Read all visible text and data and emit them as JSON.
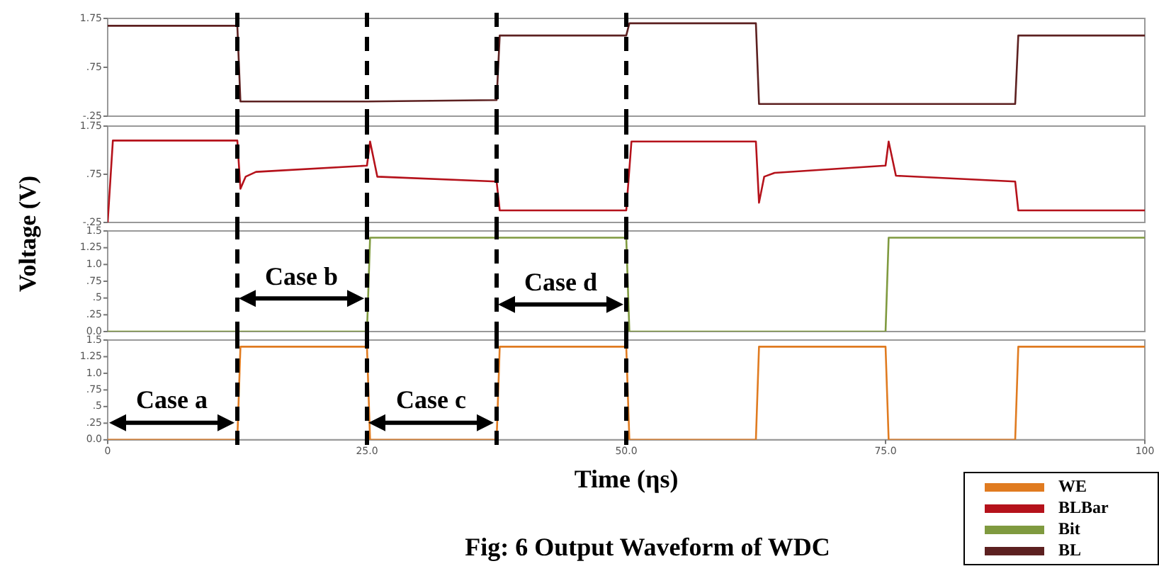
{
  "chart_data": [
    {
      "type": "line",
      "ylabel": "Voltage (V)",
      "xlim": [
        0,
        100
      ],
      "ylim": [
        -0.25,
        1.75
      ],
      "yticks": [
        {
          "value": 1.75,
          "label": "1.75"
        },
        {
          "value": 0.75,
          "label": ".75"
        },
        {
          "value": -0.25,
          "label": "-.25"
        }
      ],
      "tick_labels": "y",
      "grid": false,
      "legend": "bottom right",
      "marker": "none",
      "series": [
        {
          "name": "BL",
          "color": "#5c2020",
          "x": [
            0,
            12.5,
            12.8,
            25,
            37.5,
            37.8,
            50,
            50.3,
            62.5,
            62.8,
            87.5,
            87.8,
            100
          ],
          "values": [
            1.6,
            1.6,
            0.05,
            0.05,
            0.08,
            1.4,
            1.4,
            1.65,
            1.65,
            0.0,
            0.0,
            1.4,
            1.4
          ]
        }
      ],
      "ref_lines": [
        {
          "axis": "x",
          "value": 12.5,
          "color": "#000000",
          "line_style": "dashed"
        },
        {
          "axis": "x",
          "value": 25,
          "color": "#000000",
          "line_style": "dashed"
        },
        {
          "axis": "x",
          "value": 37.5,
          "color": "#000000",
          "line_style": "dashed"
        },
        {
          "axis": "x",
          "value": 50,
          "color": "#000000",
          "line_style": "dashed"
        }
      ]
    },
    {
      "type": "line",
      "xlim": [
        0,
        100
      ],
      "ylim": [
        -0.25,
        1.75
      ],
      "yticks": [
        {
          "value": 1.75,
          "label": "1.75"
        },
        {
          "value": 0.75,
          "label": ".75"
        },
        {
          "value": -0.25,
          "label": "-.25"
        }
      ],
      "tick_labels": "y",
      "grid": false,
      "legend": "bottom right",
      "marker": "none",
      "series": [
        {
          "name": "BLBar",
          "color": "#b5121b",
          "x": [
            0,
            0.5,
            12.5,
            12.8,
            13.3,
            14.3,
            25,
            25.3,
            26,
            37.5,
            37.8,
            50,
            50.5,
            62.5,
            62.8,
            63.3,
            64.3,
            75,
            75.3,
            76,
            87.5,
            87.8,
            100
          ],
          "values": [
            -0.25,
            1.45,
            1.45,
            0.45,
            0.7,
            0.8,
            0.93,
            1.43,
            0.7,
            0.6,
            0.0,
            0.0,
            1.43,
            1.43,
            0.16,
            0.7,
            0.78,
            0.93,
            1.43,
            0.72,
            0.6,
            0.0,
            0.0
          ]
        }
      ],
      "ref_lines": [
        {
          "axis": "x",
          "value": 12.5,
          "color": "#000000",
          "line_style": "dashed"
        },
        {
          "axis": "x",
          "value": 25,
          "color": "#000000",
          "line_style": "dashed"
        },
        {
          "axis": "x",
          "value": 37.5,
          "color": "#000000",
          "line_style": "dashed"
        },
        {
          "axis": "x",
          "value": 50,
          "color": "#000000",
          "line_style": "dashed"
        }
      ]
    },
    {
      "type": "line",
      "xlim": [
        0,
        100
      ],
      "ylim": [
        0,
        1.5
      ],
      "yticks": [
        {
          "value": 1.5,
          "label": "1.5"
        },
        1.25,
        {
          "value": 1.0,
          "label": "1.0"
        },
        {
          "value": 0.75,
          "label": ".75"
        },
        {
          "value": 0.5,
          "label": ".5"
        },
        {
          "value": 0.25,
          "label": ".25"
        },
        {
          "value": 0,
          "label": "0.0"
        }
      ],
      "tick_labels": "y",
      "grid": false,
      "legend": "bottom right",
      "marker": "none",
      "series": [
        {
          "name": "Bit",
          "color": "#7f9a3f",
          "x": [
            0,
            25,
            25.3,
            50,
            50.3,
            75,
            75.3,
            100
          ],
          "values": [
            0,
            0,
            1.4,
            1.4,
            0,
            0,
            1.4,
            1.4
          ]
        }
      ],
      "ref_lines": [
        {
          "axis": "x",
          "value": 12.5,
          "color": "#000000",
          "line_style": "dashed"
        },
        {
          "axis": "x",
          "value": 25,
          "color": "#000000",
          "line_style": "dashed"
        },
        {
          "axis": "x",
          "value": 37.5,
          "color": "#000000",
          "line_style": "dashed"
        },
        {
          "axis": "x",
          "value": 50,
          "color": "#000000",
          "line_style": "dashed"
        }
      ],
      "annotations": [
        "Case b",
        "Case d"
      ]
    },
    {
      "type": "line",
      "xlabel": "Time (ηs)",
      "xlim": [
        0,
        100
      ],
      "xticks": [
        0,
        {
          "value": 25,
          "label": "25.0"
        },
        {
          "value": 50,
          "label": "50.0"
        },
        {
          "value": 75,
          "label": "75.0"
        },
        100
      ],
      "ylim": [
        0,
        1.5
      ],
      "yticks": [
        {
          "value": 1.5,
          "label": "1.5"
        },
        1.25,
        {
          "value": 1.0,
          "label": "1.0"
        },
        {
          "value": 0.75,
          "label": ".75"
        },
        {
          "value": 0.5,
          "label": ".5"
        },
        {
          "value": 0.25,
          "label": ".25"
        },
        {
          "value": 0,
          "label": "0.0"
        }
      ],
      "grid": false,
      "legend": "bottom right",
      "marker": "none",
      "series": [
        {
          "name": "WE",
          "color": "#e07b20",
          "x": [
            0,
            12.5,
            12.8,
            25,
            25.3,
            37.5,
            37.8,
            50,
            50.3,
            62.5,
            62.8,
            75,
            75.3,
            87.5,
            87.8,
            100
          ],
          "values": [
            0,
            0,
            1.4,
            1.4,
            0,
            0,
            1.4,
            1.4,
            0,
            0,
            1.4,
            1.4,
            0,
            0,
            1.4,
            1.4
          ]
        }
      ],
      "ref_lines": [
        {
          "axis": "x",
          "value": 12.5,
          "color": "#000000",
          "line_style": "dashed"
        },
        {
          "axis": "x",
          "value": 25,
          "color": "#000000",
          "line_style": "dashed"
        },
        {
          "axis": "x",
          "value": 37.5,
          "color": "#000000",
          "line_style": "dashed"
        },
        {
          "axis": "x",
          "value": 50,
          "color": "#000000",
          "line_style": "dashed"
        }
      ],
      "annotations": [
        "Case a",
        "Case c",
        "Fig: 6 Output Waveform of WDC"
      ]
    }
  ]
}
